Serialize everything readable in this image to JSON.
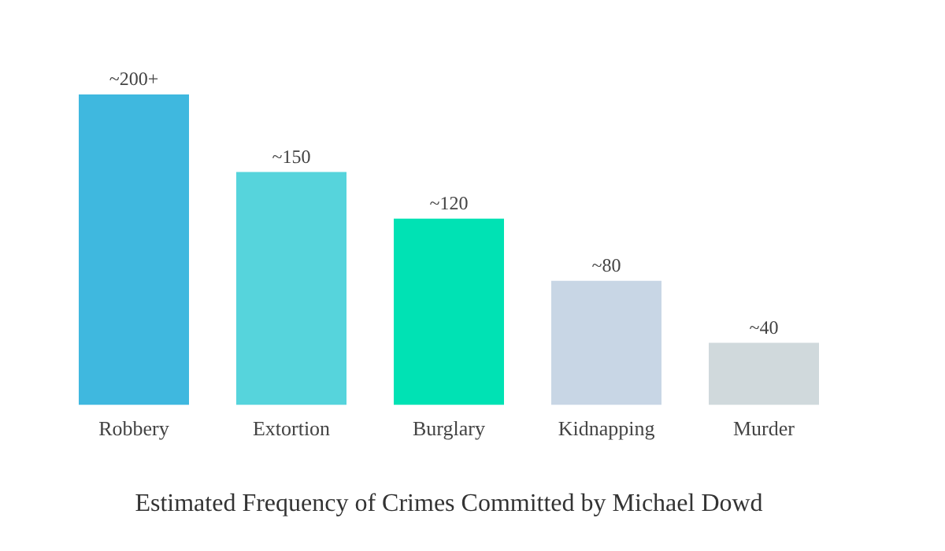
{
  "chart_data": {
    "type": "bar",
    "title": "Estimated Frequency of Crimes Committed by Michael Dowd",
    "categories": [
      "Robbery",
      "Extortion",
      "Burglary",
      "Kidnapping",
      "Murder"
    ],
    "values": [
      200,
      150,
      120,
      80,
      40
    ],
    "value_labels": [
      "~200+",
      "~150",
      "~120",
      "~80",
      "~40"
    ],
    "colors": [
      "#3fb8df",
      "#56d4dc",
      "#00e2b4",
      "#c8d6e5",
      "#d0d9dc"
    ],
    "grid": false,
    "legend": false
  }
}
